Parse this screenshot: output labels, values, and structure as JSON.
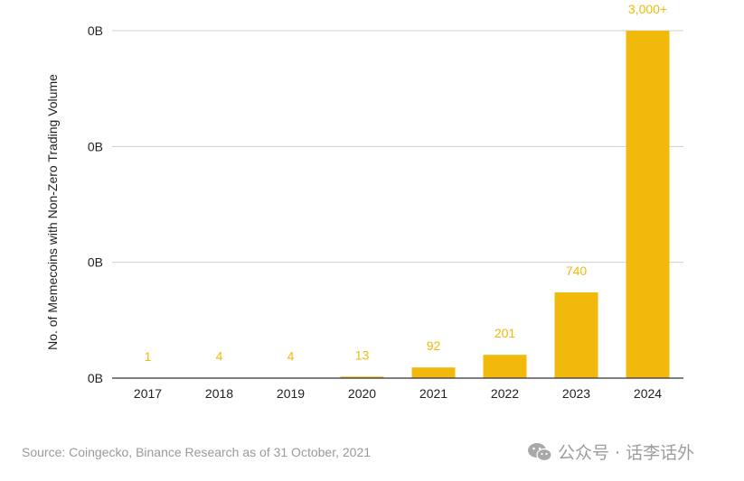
{
  "chart_data": {
    "type": "bar",
    "categories": [
      "2017",
      "2018",
      "2019",
      "2020",
      "2021",
      "2022",
      "2023",
      "2024"
    ],
    "values": [
      1,
      4,
      4,
      13,
      92,
      201,
      740,
      3000
    ],
    "data_labels": [
      "1",
      "4",
      "4",
      "13",
      "92",
      "201",
      "740",
      "3,000+"
    ],
    "ylabel": "No. of Memecoins with Non-Zero Trading Volume",
    "y_tick_labels": [
      "0B",
      "0B",
      "0B",
      "0B"
    ],
    "ylim": [
      0,
      3000
    ],
    "grid": true,
    "bar_color": "#F0B90B",
    "label_color": "#F0B90B"
  },
  "footer": {
    "source": "Source: Coingecko, Binance Research as of 31 October, 2021",
    "watermark": "公众号 · 话李话外"
  }
}
